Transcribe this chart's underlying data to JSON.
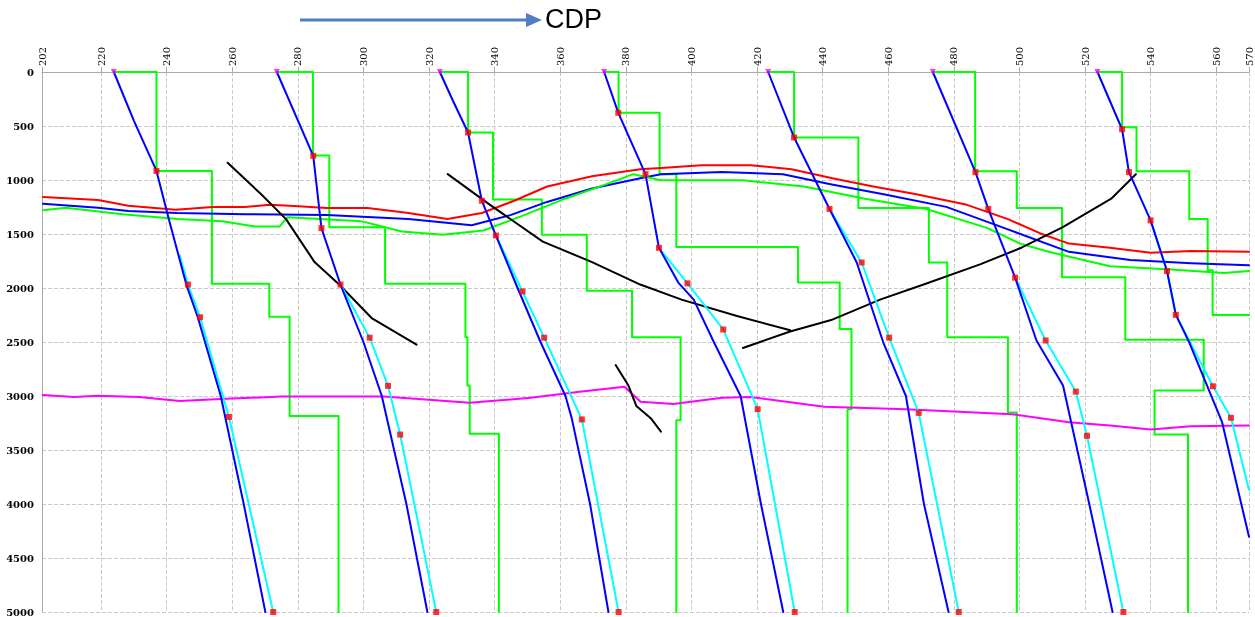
{
  "chart_data": {
    "type": "line",
    "xlabel": "CDP",
    "xlim": [
      202,
      570
    ],
    "xticks": [
      202,
      220,
      240,
      260,
      280,
      300,
      320,
      340,
      360,
      380,
      400,
      420,
      440,
      460,
      480,
      500,
      520,
      540,
      560,
      570
    ],
    "ylim": [
      5000,
      0
    ],
    "yticks": [
      0,
      500,
      1000,
      1500,
      2000,
      2500,
      3000,
      3500,
      4000,
      4500,
      5000
    ],
    "grid": true,
    "marker": "none",
    "line_style": "solid",
    "series": [
      {
        "color": "#00ff00",
        "x": [
          223.9,
          236.9,
          236.9,
          253.8,
          253.8,
          271.3,
          271.3,
          277.5,
          277.5,
          292.4,
          292.4
        ],
        "values": [
          0,
          0,
          916,
          916,
          1960,
          1960,
          2267,
          2267,
          3186,
          3186,
          5000
        ]
      },
      {
        "color": "#00ff00",
        "x": [
          273.6,
          284.6,
          284.6,
          289.6,
          289.6,
          306.6,
          306.6,
          331.1,
          331.1,
          331.7,
          331.7,
          332.4,
          332.4,
          341.3,
          341.3
        ],
        "values": [
          0,
          0,
          772,
          772,
          1438,
          1438,
          1960,
          1960,
          2456,
          2456,
          2903,
          2903,
          3349,
          3349,
          5000
        ]
      },
      {
        "color": "#00ff00",
        "x": [
          323.3,
          331.9,
          331.9,
          339.5,
          339.5,
          354.4,
          354.4,
          368.1,
          368.1,
          381.9,
          381.9,
          396.7,
          396.7,
          395.4,
          395.4
        ],
        "values": [
          0,
          0,
          560,
          560,
          1181,
          1181,
          1506,
          1506,
          2025,
          2025,
          2456,
          2456,
          3224,
          3224,
          5000
        ]
      },
      {
        "color": "#00ff00",
        "x": [
          373.4,
          377.8,
          377.8,
          390.3,
          390.3,
          395.4,
          395.4,
          432.5,
          432.5,
          445.2,
          445.2,
          448.8,
          448.8,
          447.6,
          447.6
        ],
        "values": [
          0,
          0,
          378,
          378,
          946,
          946,
          1620,
          1620,
          1949,
          1949,
          2380,
          2380,
          3122,
          3122,
          5000
        ]
      },
      {
        "color": "#00ff00",
        "x": [
          423.4,
          431.3,
          431.3,
          450.9,
          450.9,
          472.4,
          472.4,
          478,
          478,
          496.5,
          496.5,
          499.2,
          499.2
        ],
        "values": [
          0,
          0,
          606,
          606,
          1260,
          1260,
          1764,
          1764,
          2456,
          2456,
          3153,
          3153,
          5000
        ]
      },
      {
        "color": "#00ff00",
        "x": [
          473.6,
          486.5,
          486.5,
          499.2,
          499.2,
          513,
          513,
          532.3,
          532.3,
          556.2,
          556.2,
          541.2,
          541.2,
          551.4,
          551.4
        ],
        "values": [
          0,
          0,
          920,
          920,
          1260,
          1260,
          1900,
          1900,
          2479,
          2479,
          2948,
          2948,
          3357,
          3357,
          5000
        ]
      },
      {
        "color": "#00ff00",
        "x": [
          523.8,
          531.3,
          531.3,
          535.7,
          535.7,
          551.8,
          551.8,
          557.4,
          557.4,
          558.9,
          558.9,
          570
        ],
        "values": [
          0,
          0,
          511,
          511,
          920,
          920,
          1362,
          1362,
          1835,
          1835,
          2250,
          2250
        ]
      },
      {
        "color": "#ff0000",
        "x": [
          202.3,
          219.1,
          228.3,
          242.8,
          254,
          263.9,
          271.4,
          278.9,
          288.8,
          301.3,
          313.7,
          325.6,
          336.1,
          346,
          356,
          369.7,
          384.4,
          390.7,
          403.1,
          418.1,
          430.5,
          443,
          455.4,
          467.8,
          484,
          496.5,
          506.4,
          515.1,
          527.6,
          540,
          552.4,
          570
        ],
        "values": [
          1158,
          1185,
          1238,
          1275,
          1249,
          1249,
          1230,
          1241,
          1260,
          1260,
          1306,
          1362,
          1306,
          1192,
          1060,
          965,
          901,
          889,
          863,
          863,
          901,
          984,
          1060,
          1128,
          1230,
          1362,
          1495,
          1589,
          1627,
          1673,
          1658,
          1665
        ]
      },
      {
        "color": "#0000ff",
        "x": [
          202.3,
          219.1,
          228.3,
          243.3,
          263.9,
          288.8,
          313.7,
          333,
          344.8,
          356,
          369.7,
          384.4,
          390.7,
          409.3,
          427.9,
          442.8,
          459,
          477.7,
          496.5,
          515.1,
          533.8,
          552.4,
          570
        ],
        "values": [
          1219,
          1256,
          1287,
          1306,
          1317,
          1325,
          1362,
          1419,
          1325,
          1203,
          1079,
          984,
          946,
          927,
          946,
          1041,
          1135,
          1249,
          1457,
          1665,
          1741,
          1771,
          1790
        ]
      },
      {
        "color": "#00ff00",
        "x": [
          202.3,
          209.2,
          226.6,
          243.3,
          257,
          266.9,
          274.4,
          276.9,
          299.3,
          311.7,
          324.2,
          336.6,
          349,
          361.5,
          373.9,
          382.3,
          390.7,
          415.6,
          434.3,
          452.9,
          471.6,
          490.3,
          500.2,
          508.9,
          527.6,
          546.2,
          562.4,
          570
        ],
        "values": [
          1279,
          1256,
          1317,
          1362,
          1381,
          1431,
          1431,
          1344,
          1381,
          1476,
          1506,
          1468,
          1325,
          1173,
          1041,
          946,
          1003,
          1003,
          1060,
          1173,
          1268,
          1446,
          1589,
          1665,
          1798,
          1828,
          1862,
          1843
        ]
      },
      {
        "color": "#ff00ff",
        "x": [
          202.3,
          211.7,
          219.1,
          231.6,
          244,
          256.5,
          275.1,
          306.2,
          319.9,
          332.3,
          351,
          365.9,
          379.6,
          384.5,
          394.5,
          409.4,
          418.1,
          440.5,
          465.4,
          497.7,
          515.1,
          527.6,
          540,
          552.4,
          570
        ],
        "values": [
          2990,
          3009,
          2998,
          3009,
          3047,
          3028,
          3005,
          3005,
          3035,
          3062,
          3017,
          2960,
          2914,
          3054,
          3073,
          3016,
          3009,
          3100,
          3122,
          3168,
          3243,
          3274,
          3311,
          3281,
          3274
        ]
      },
      {
        "color": "#000000",
        "x": [
          258.6,
          268.9,
          276.4,
          285.1,
          292.6,
          302.5,
          316.2
        ],
        "values": [
          840,
          1135,
          1362,
          1760,
          1968,
          2278,
          2524
        ]
      },
      {
        "color": "#000000",
        "x": [
          325.7,
          338.6,
          354.7,
          369.7,
          384.4,
          397,
          413.9,
          430.1
        ],
        "values": [
          946,
          1230,
          1571,
          1760,
          1968,
          2108,
          2259,
          2392
        ]
      },
      {
        "color": "#000000",
        "x": [
          415.7,
          430.1,
          442.6,
          457.5,
          470.8,
          488.2,
          500.6,
          513.1,
          528,
          535.5
        ],
        "values": [
          2555,
          2403,
          2297,
          2108,
          1968,
          1779,
          1627,
          1438,
          1173,
          946
        ]
      },
      {
        "color": "#000000",
        "x": [
          376.9,
          380.8,
          383.2,
          387.6,
          390.7
        ],
        "values": [
          2713,
          2903,
          3092,
          3205,
          3330
        ]
      },
      {
        "color": "#00ffff",
        "x": [
          244,
          246.5,
          250.2,
          259,
          272.5
        ],
        "values": [
          1700,
          1968,
          2271,
          3194,
          5000
        ]
      },
      {
        "color": "#00ffff",
        "x": [
          293,
          301.9,
          307.5,
          311.2,
          322.2
        ],
        "values": [
          1968,
          2460,
          2906,
          3357,
          5000
        ]
      },
      {
        "color": "#00ffff",
        "x": [
          340.4,
          348.5,
          355.1,
          366.6,
          377.8
        ],
        "values": [
          1514,
          2032,
          2460,
          3217,
          5000
        ]
      },
      {
        "color": "#00ffff",
        "x": [
          390.1,
          398.8,
          409.7,
          420.2,
          431.5
        ],
        "values": [
          1628,
          1957,
          2384,
          3122,
          5000
        ]
      },
      {
        "color": "#00ffff",
        "x": [
          442.1,
          451.9,
          460.3,
          469.3,
          481.5
        ],
        "values": [
          1268,
          1764,
          2460,
          3156,
          5000
        ]
      },
      {
        "color": "#00ffff",
        "x": [
          498.7,
          508,
          517.2,
          520.6,
          531.7
        ],
        "values": [
          1904,
          2486,
          2959,
          3368,
          5000
        ]
      },
      {
        "color": "#00ffff",
        "x": [
          540,
          545,
          547.7,
          559,
          564.5,
          570
        ],
        "values": [
          1374,
          1843,
          2249,
          2910,
          3202,
          3869
        ]
      },
      {
        "color": "#0000ff",
        "x": [
          223.9,
          230,
          236.9,
          241,
          246,
          249.5,
          256.5,
          263.5,
          270.1
        ],
        "values": [
          0,
          450,
          916,
          1400,
          1968,
          2271,
          3000,
          4000,
          5000
        ]
      },
      {
        "color": "#0000ff",
        "x": [
          273.6,
          284.7,
          287.2,
          293,
          300,
          305.6,
          313.1,
          319.5
        ],
        "values": [
          0,
          776,
          1446,
          1968,
          2500,
          3000,
          4000,
          5000
        ]
      },
      {
        "color": "#0000ff",
        "x": [
          323.3,
          327.5,
          331.9,
          336.1,
          340.4,
          347,
          354,
          361.6,
          363.5,
          369.1,
          374.7
        ],
        "values": [
          0,
          280,
          560,
          1192,
          1514,
          2000,
          2500,
          3000,
          3205,
          4000,
          5000
        ]
      },
      {
        "color": "#0000ff",
        "x": [
          373.4,
          377.7,
          386,
          390.1,
          396,
          400.7,
          406.9,
          415,
          421.2,
          428
        ],
        "values": [
          0,
          378,
          946,
          1628,
          1950,
          2108,
          2505,
          3000,
          4000,
          5000
        ]
      },
      {
        "color": "#0000ff",
        "x": [
          423.4,
          431.3,
          442.1,
          450.4,
          458.5,
          465.4,
          470.9,
          478.4
        ],
        "values": [
          0,
          606,
          1268,
          1764,
          2505,
          3000,
          4000,
          5000
        ]
      },
      {
        "color": "#0000ff",
        "x": [
          473.6,
          486.6,
          490.5,
          498.7,
          505.2,
          513.3,
          521.3,
          528.4
        ],
        "values": [
          0,
          927,
          1268,
          1904,
          2486,
          2903,
          4000,
          5000
        ]
      },
      {
        "color": "#0000ff",
        "x": [
          523.8,
          531.3,
          533.4,
          540,
          545,
          547.7,
          551.8,
          561.8,
          570
        ],
        "values": [
          0,
          530,
          927,
          1374,
          1843,
          2249,
          2505,
          3243,
          4304
        ]
      },
      {
        "type": "scatter",
        "marker": "square",
        "color": "#ff0000",
        "x": [
          236.9,
          246.5,
          250.2,
          259,
          272.5,
          284.7,
          287.2,
          293,
          301.9,
          307.5,
          311.2,
          322.2,
          331.9,
          336.1,
          340.4,
          348.5,
          355.1,
          366.6,
          377.8,
          377.7,
          386,
          390.1,
          398.8,
          409.7,
          420.2,
          431.5,
          431.3,
          442.1,
          451.9,
          460.3,
          469.3,
          481.5,
          486.6,
          490.5,
          498.7,
          508,
          517.2,
          520.6,
          531.7,
          531.3,
          533.4,
          540,
          545,
          547.7,
          559,
          564.5
        ],
        "values": [
          916,
          1968,
          2271,
          3194,
          5000,
          776,
          1446,
          1968,
          2460,
          2906,
          3357,
          5000,
          560,
          1192,
          1514,
          2032,
          2460,
          3217,
          5000,
          378,
          946,
          1628,
          1957,
          2384,
          3122,
          5000,
          606,
          1268,
          1764,
          2460,
          3156,
          5000,
          927,
          1268,
          1904,
          2486,
          2959,
          3368,
          5000,
          530,
          927,
          1374,
          1843,
          2249,
          2910,
          3202
        ]
      },
      {
        "type": "scatter",
        "marker": "triangle",
        "color": "#ff00ff",
        "x": [
          223.9,
          273.6,
          323.3,
          373.4,
          423.4,
          473.6,
          523.8
        ],
        "values": [
          0,
          0,
          0,
          0,
          0,
          0,
          0
        ]
      }
    ]
  }
}
